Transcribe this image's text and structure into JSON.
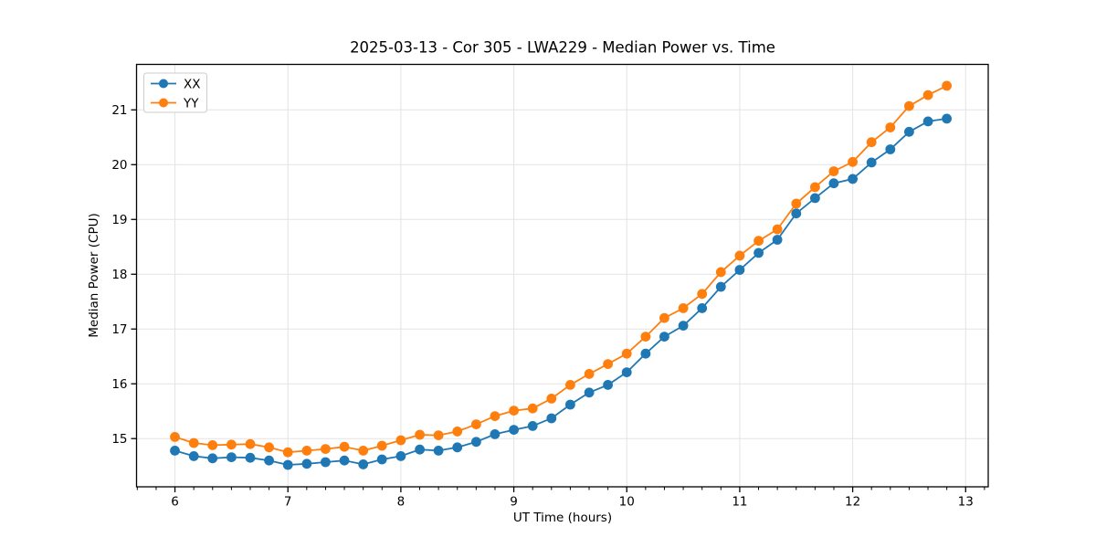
{
  "chart_data": {
    "type": "line",
    "title": "2025-03-13 - Cor 305 - LWA229 - Median Power vs. Time",
    "xlabel": "UT Time (hours)",
    "ylabel": "Median Power (CPU)",
    "xlim": [
      5.66,
      13.2
    ],
    "ylim": [
      14.12,
      21.83
    ],
    "x_ticks": [
      6,
      7,
      8,
      9,
      10,
      11,
      12,
      13
    ],
    "y_ticks": [
      15,
      16,
      17,
      18,
      19,
      20,
      21
    ],
    "x_minor_divisions": 6,
    "grid": true,
    "grid_color": "#e3e3e3",
    "spine_color": "#000000",
    "legend_position": "upper-left",
    "legend_border_color": "#cccccc",
    "marker": "o",
    "x": [
      6.0,
      6.167,
      6.333,
      6.5,
      6.667,
      6.833,
      7.0,
      7.167,
      7.333,
      7.5,
      7.667,
      7.833,
      8.0,
      8.167,
      8.333,
      8.5,
      8.667,
      8.833,
      9.0,
      9.167,
      9.333,
      9.5,
      9.667,
      9.833,
      10.0,
      10.167,
      10.333,
      10.5,
      10.667,
      10.833,
      11.0,
      11.167,
      11.333,
      11.5,
      11.667,
      11.833,
      12.0,
      12.167,
      12.333,
      12.5,
      12.667,
      12.833
    ],
    "series": [
      {
        "name": "XX",
        "color": "#1f77b4",
        "values": [
          14.78,
          14.68,
          14.64,
          14.66,
          14.65,
          14.6,
          14.52,
          14.54,
          14.57,
          14.6,
          14.53,
          14.62,
          14.68,
          14.8,
          14.78,
          14.84,
          14.94,
          15.08,
          15.16,
          15.23,
          15.37,
          15.62,
          15.84,
          15.98,
          16.21,
          16.55,
          16.86,
          17.06,
          17.38,
          17.77,
          18.08,
          18.39,
          18.63,
          19.11,
          19.39,
          19.66,
          19.74,
          20.04,
          20.28,
          20.6,
          20.79,
          20.84
        ]
      },
      {
        "name": "YY",
        "color": "#ff7f0e",
        "values": [
          15.03,
          14.92,
          14.88,
          14.89,
          14.9,
          14.84,
          14.75,
          14.78,
          14.81,
          14.85,
          14.78,
          14.87,
          14.97,
          15.07,
          15.06,
          15.13,
          15.26,
          15.41,
          15.51,
          15.55,
          15.73,
          15.98,
          16.18,
          16.36,
          16.55,
          16.86,
          17.2,
          17.38,
          17.64,
          18.04,
          18.34,
          18.61,
          18.82,
          19.29,
          19.59,
          19.88,
          20.05,
          20.41,
          20.68,
          21.07,
          21.27,
          21.44
        ]
      }
    ]
  }
}
